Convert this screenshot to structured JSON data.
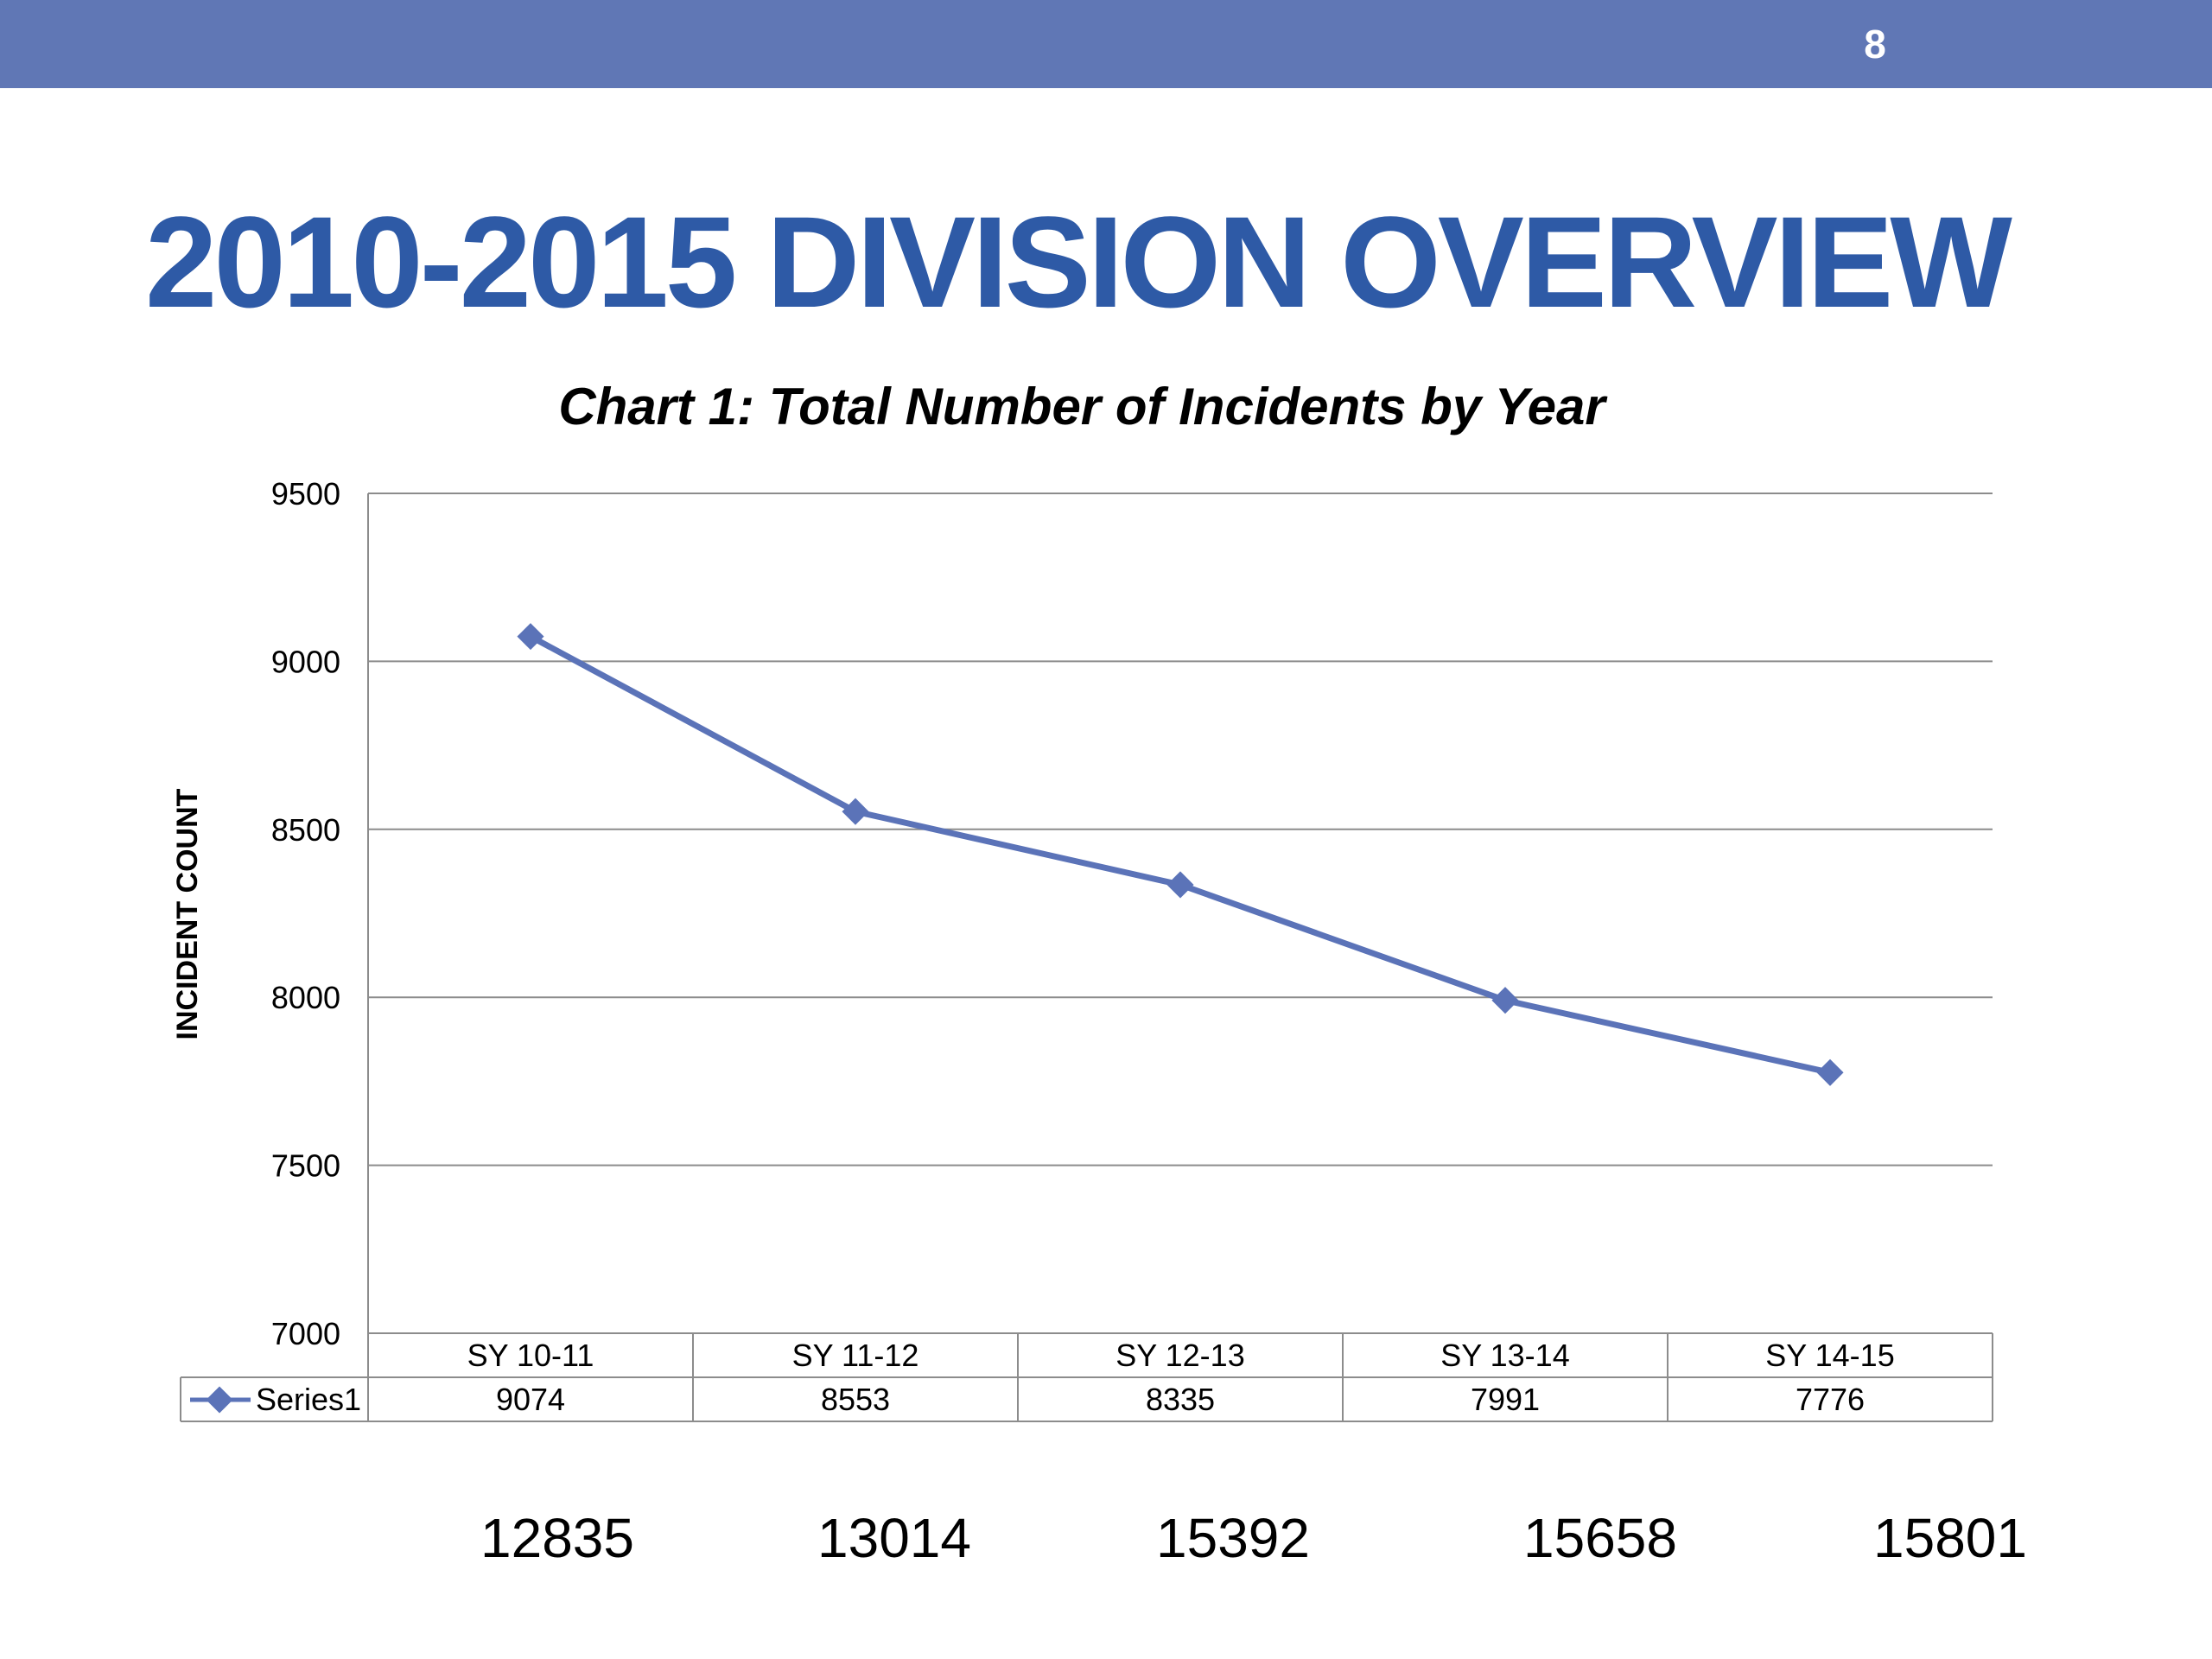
{
  "header": {
    "page_number": "8",
    "bar_color": "#6077b5"
  },
  "slide": {
    "title": "2010-2015 DIVISION OVERVIEW",
    "title_color": "#2e5aa6"
  },
  "chart_data": {
    "type": "line",
    "title": "Chart 1: Total Number of Incidents by Year",
    "xlabel": "",
    "ylabel": "INCIDENT COUNT",
    "categories": [
      "SY 10-11",
      "SY 11-12",
      "SY 12-13",
      "SY 13-14",
      "SY 14-15"
    ],
    "series": [
      {
        "name": "Series1",
        "values": [
          9074,
          8553,
          8335,
          7991,
          7776
        ],
        "color": "#5b73b8"
      }
    ],
    "ylim": [
      7000,
      9500
    ],
    "yticks": [
      9500,
      9000,
      8500,
      8000,
      7500,
      7000
    ],
    "grid": true,
    "data_table": true
  },
  "footer_values": [
    "12835",
    "13014",
    "15392",
    "15658",
    "15801"
  ]
}
